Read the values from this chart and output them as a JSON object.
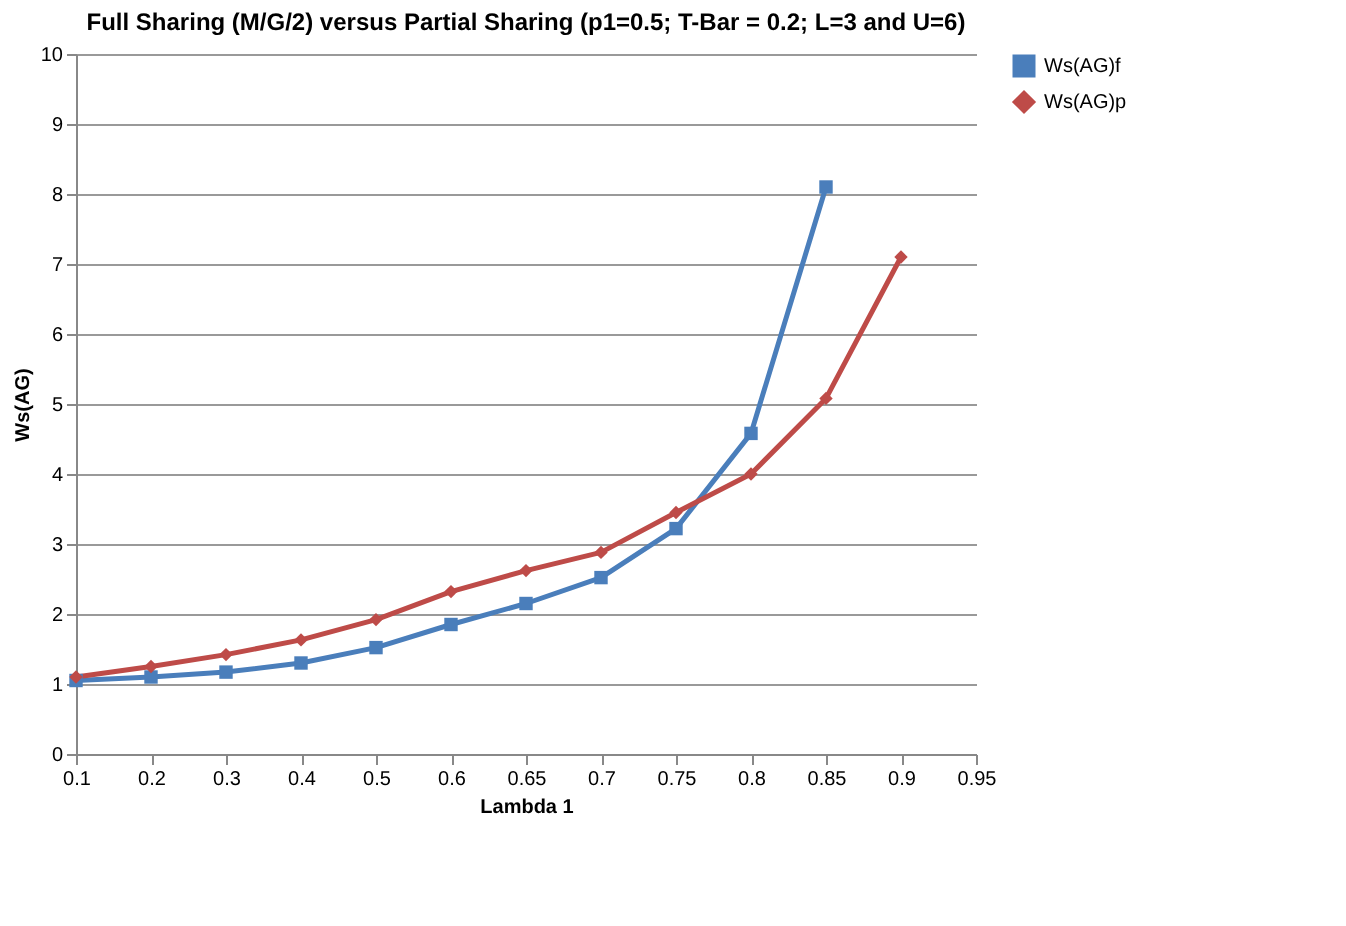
{
  "chart_data": {
    "type": "line",
    "title": "Full Sharing (M/G/2) versus Partial Sharing (p1=0.5; T-Bar = 0.2; L=3 and U=6)",
    "xlabel": "Lambda 1",
    "ylabel": "Ws(AG)",
    "categories": [
      "0.1",
      "0.2",
      "0.3",
      "0.4",
      "0.5",
      "0.6",
      "0.65",
      "0.7",
      "0.75",
      "0.8",
      "0.85",
      "0.9",
      "0.95"
    ],
    "series": [
      {
        "name": "Ws(AG)f",
        "color": "#4a7ebb",
        "marker": "square",
        "values": [
          1.05,
          1.1,
          1.17,
          1.3,
          1.52,
          1.85,
          2.15,
          2.52,
          3.22,
          4.58,
          8.1,
          null,
          null
        ]
      },
      {
        "name": "Ws(AG)p",
        "color": "#be4b48",
        "marker": "diamond",
        "values": [
          1.1,
          1.25,
          1.42,
          1.63,
          1.92,
          2.32,
          2.62,
          2.88,
          3.45,
          4.0,
          5.08,
          7.1,
          null
        ]
      }
    ],
    "ylim": [
      0,
      10
    ],
    "yticks": [
      0,
      1,
      2,
      3,
      4,
      5,
      6,
      7,
      8,
      9,
      10
    ],
    "grid": "y",
    "legend": "right",
    "line_style": "solid"
  }
}
